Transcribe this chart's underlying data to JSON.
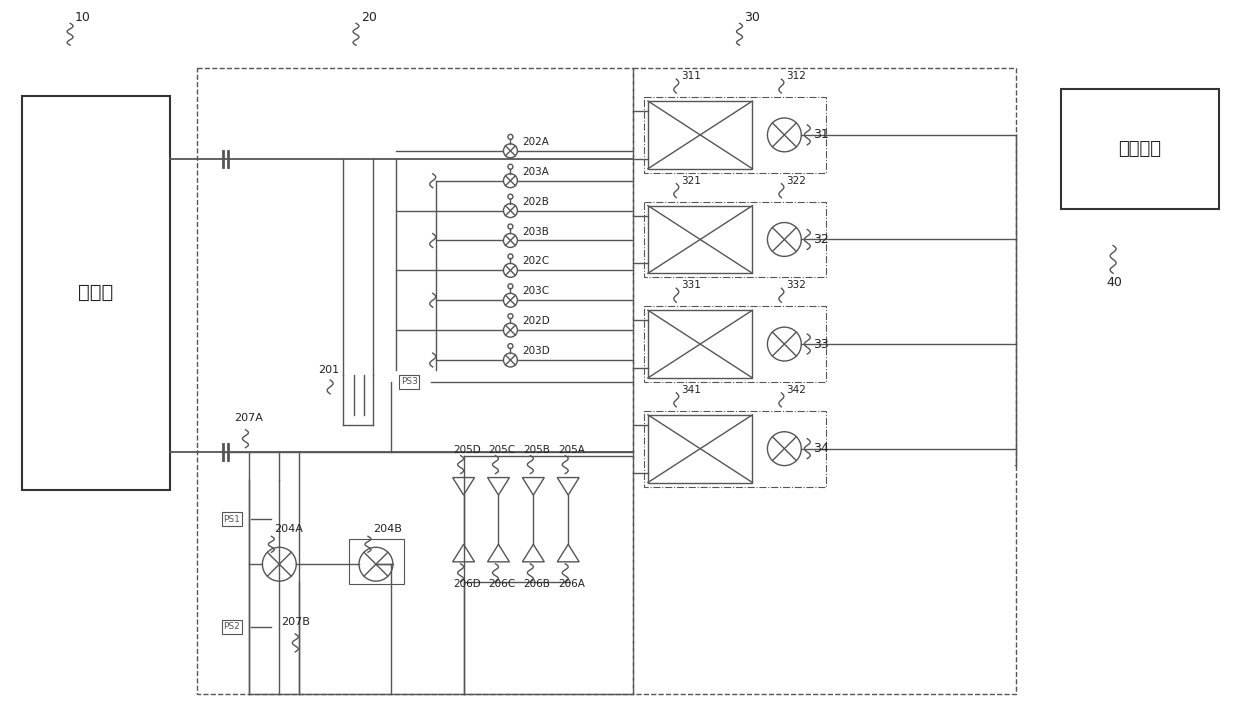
{
  "bg_color": "#ffffff",
  "line_color": "#555555",
  "labels": {
    "outdoor_unit": "室外机",
    "control_module": "控制模块",
    "ref10": "10",
    "ref20": "20",
    "ref30": "30",
    "ref40": "40",
    "ref31": "31",
    "ref32": "32",
    "ref33": "33",
    "ref34": "34",
    "ref201": "201",
    "ref202A": "202A",
    "ref203A": "203A",
    "ref202B": "202B",
    "ref203B": "203B",
    "ref202C": "202C",
    "ref203C": "203C",
    "ref202D": "202D",
    "ref203D": "203D",
    "ref204A": "204A",
    "ref204B": "204B",
    "ref205A": "205A",
    "ref205B": "205B",
    "ref205C": "205C",
    "ref205D": "205D",
    "ref206A": "206A",
    "ref206B": "206B",
    "ref206C": "206C",
    "ref206D": "206D",
    "ref207A": "207A",
    "ref207B": "207B",
    "ref311": "311",
    "ref312": "312",
    "ref321": "321",
    "ref322": "322",
    "ref331": "331",
    "ref332": "332",
    "ref341": "341",
    "ref342": "342",
    "refPS1": "PS1",
    "refPS2": "PS2",
    "refPS3": "PS3"
  }
}
